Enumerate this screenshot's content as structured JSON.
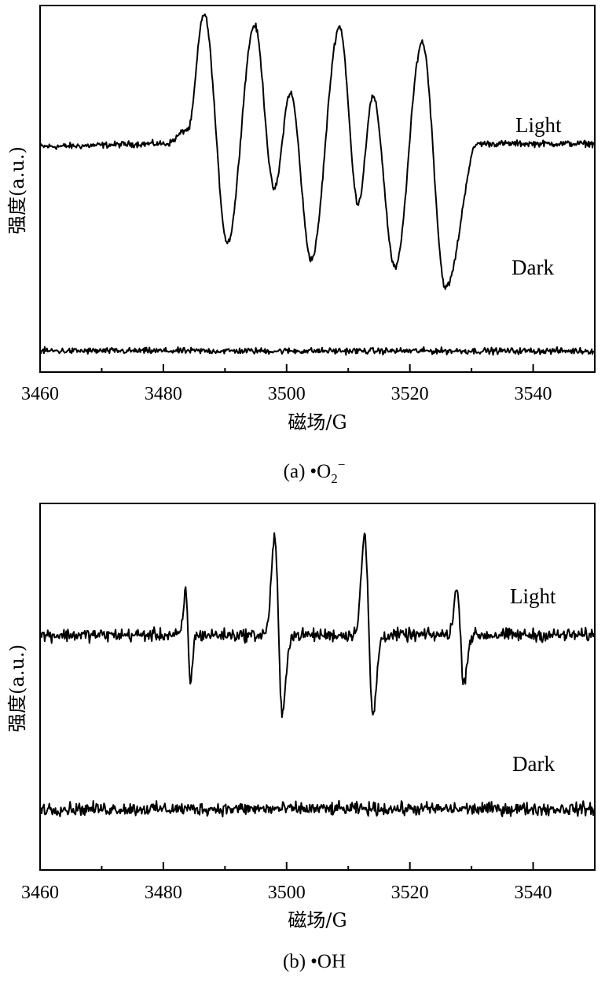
{
  "chart_data": [
    {
      "type": "line",
      "panel": "a",
      "caption": {
        "label": "(a)",
        "bullet": "•",
        "species": "O",
        "subscript": "2",
        "superscript": "−"
      },
      "xlabel": "磁场/G",
      "ylabel": "强度(a.u.)",
      "xlim": [
        3460,
        3550
      ],
      "xticks": [
        3460,
        3480,
        3500,
        3520,
        3540
      ],
      "ylim": [
        -1.6,
        1.0
      ],
      "grid": false,
      "series": [
        {
          "name": "Light",
          "baseline": 0,
          "peaks": [
            {
              "x": 3486.6,
              "y": 0.94
            },
            {
              "x": 3490.4,
              "y": -0.68
            },
            {
              "x": 3494.8,
              "y": 0.86
            },
            {
              "x": 3498.0,
              "y": -0.3
            },
            {
              "x": 3500.6,
              "y": 0.38
            },
            {
              "x": 3504.0,
              "y": -0.8
            },
            {
              "x": 3508.6,
              "y": 0.85
            },
            {
              "x": 3511.6,
              "y": -0.4
            },
            {
              "x": 3514.0,
              "y": 0.35
            },
            {
              "x": 3517.6,
              "y": -0.86
            },
            {
              "x": 3522.0,
              "y": 0.74
            },
            {
              "x": 3525.8,
              "y": -1.0
            }
          ]
        },
        {
          "name": "Dark",
          "baseline": -1.45,
          "peaks": []
        }
      ]
    },
    {
      "type": "line",
      "panel": "b",
      "caption": {
        "label": "(b)",
        "bullet": "•",
        "species": "OH"
      },
      "xlabel": "磁场/G",
      "ylabel": "强度(a.u.)",
      "xlim": [
        3460,
        3550
      ],
      "xticks": [
        3460,
        3480,
        3500,
        3520,
        3540
      ],
      "ylim": [
        -2.5,
        1.4
      ],
      "grid": false,
      "series": [
        {
          "name": "Light",
          "baseline": 0,
          "peaks": [
            {
              "x": 3483.6,
              "y": 0.48
            },
            {
              "x": 3484.4,
              "y": -0.5
            },
            {
              "x": 3498.0,
              "y": 1.1
            },
            {
              "x": 3499.3,
              "y": -0.8
            },
            {
              "x": 3512.6,
              "y": 1.1
            },
            {
              "x": 3514.0,
              "y": -0.8
            },
            {
              "x": 3527.6,
              "y": 0.48
            },
            {
              "x": 3528.8,
              "y": -0.5
            }
          ]
        },
        {
          "name": "Dark",
          "baseline": -1.85,
          "peaks": []
        }
      ]
    }
  ]
}
